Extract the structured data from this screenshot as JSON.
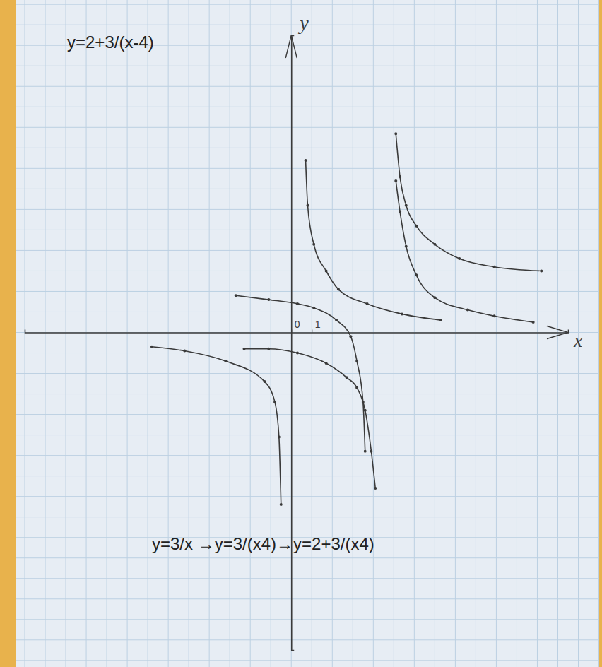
{
  "chart_data": {
    "type": "line",
    "title": "y=2+3/(x-4)",
    "annotations": [
      "y=3/x →y=3/(x4)→y=2+3/(x4)"
    ],
    "x_label": "x",
    "y_label": "y",
    "xlim": [
      -13,
      13.5
    ],
    "ylim": [
      -15.5,
      14.5
    ],
    "xticks": [
      0,
      1
    ],
    "yticks": [],
    "tick_labels": "x",
    "color": "#3a3a3a",
    "marker": "dot",
    "line_style": "solid",
    "series": [
      {
        "x": [
          -6.8,
          -5.2,
          -3.2,
          -1.3,
          -0.8,
          -0.6,
          -0.5,
          0,
          0.7,
          0.8,
          1.1,
          1.7,
          2.3,
          3.7,
          5.4,
          7.3
        ],
        "values": [
          -0.7,
          -0.9,
          -1.4,
          -2.4,
          -3.4,
          -5.1,
          -8.4,
          null,
          8.4,
          6.2,
          4.3,
          3.0,
          2.1,
          1.4,
          0.9,
          0.6
        ]
      },
      {
        "x": [
          -2.3,
          -1.1,
          0.3,
          1.7,
          2.7,
          3.2,
          3.6,
          3.9,
          4.1,
          4.6,
          5.1,
          5.3,
          5.6,
          6.1,
          7.0,
          8.6,
          9.9,
          11.8
        ],
        "values": [
          -0.8,
          -0.8,
          -1.0,
          -1.5,
          -2.2,
          -2.7,
          -3.8,
          -5.8,
          -7.6,
          null,
          7.4,
          5.9,
          4.2,
          2.8,
          1.7,
          1.1,
          0.8,
          0.5
        ]
      },
      {
        "x": [
          -2.7,
          -1.1,
          0.3,
          1.1,
          2.2,
          2.9,
          3.2,
          3.5,
          3.6,
          4.4,
          5.1,
          5.3,
          5.6,
          6.1,
          7.0,
          8.2,
          9.9,
          12.2
        ],
        "values": [
          1.8,
          1.6,
          1.4,
          1.2,
          0.6,
          -0.2,
          -1.4,
          -3.4,
          -5.8,
          null,
          9.7,
          7.6,
          6.2,
          5.2,
          4.3,
          3.6,
          3.2,
          3.0
        ]
      }
    ]
  }
}
